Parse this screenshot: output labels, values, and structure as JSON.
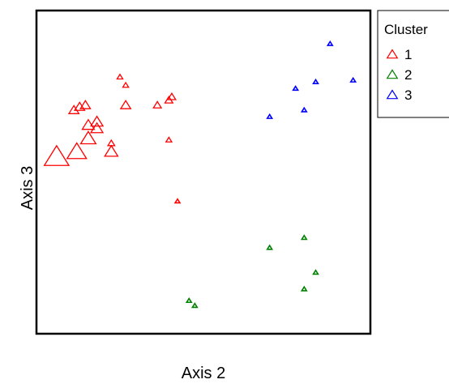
{
  "chart_data": {
    "type": "scatter",
    "xlabel": "Axis 2",
    "ylabel": "Axis 3",
    "axes_visible": false,
    "marker": "open-triangle",
    "marker_size_varies": true,
    "legend": {
      "title": "Cluster",
      "placement": "outside-top-right",
      "entries": [
        {
          "label": "1",
          "color": "#ff0000"
        },
        {
          "label": "2",
          "color": "#008000"
        },
        {
          "label": "3",
          "color": "#0000ff"
        }
      ]
    },
    "series": [
      {
        "name": "1",
        "color": "#ff0000",
        "points": [
          {
            "x": 0.95,
            "y": 0.95,
            "size": 0.2
          },
          {
            "x": 1.05,
            "y": 0.9,
            "size": 0.2
          },
          {
            "x": 1.95,
            "y": 0.2,
            "size": 0.1
          },
          {
            "x": 1.6,
            "y": 0.78,
            "size": 0.4
          },
          {
            "x": 1.85,
            "y": 0.83,
            "size": 0.4
          },
          {
            "x": 1.8,
            "y": 0.81,
            "size": 0.4
          },
          {
            "x": 1.05,
            "y": 0.78,
            "size": 0.6
          },
          {
            "x": 0.15,
            "y": 0.75,
            "size": 0.6
          },
          {
            "x": 0.25,
            "y": 0.77,
            "size": 0.6
          },
          {
            "x": 0.35,
            "y": 0.78,
            "size": 0.6
          },
          {
            "x": 0.55,
            "y": 0.68,
            "size": 0.8
          },
          {
            "x": 0.4,
            "y": 0.66,
            "size": 0.8
          },
          {
            "x": 0.55,
            "y": 0.64,
            "size": 0.8
          },
          {
            "x": 0.4,
            "y": 0.58,
            "size": 1.1
          },
          {
            "x": 0.8,
            "y": 0.55,
            "size": 0.3
          },
          {
            "x": 0.8,
            "y": 0.5,
            "size": 0.9
          },
          {
            "x": 1.8,
            "y": 0.57,
            "size": 0.2
          },
          {
            "x": 0.2,
            "y": 0.5,
            "size": 1.5
          },
          {
            "x": -0.15,
            "y": 0.47,
            "size": 2.0
          }
        ]
      },
      {
        "name": "2",
        "color": "#008000",
        "points": [
          {
            "x": 3.55,
            "y": -0.08,
            "size": 0.1
          },
          {
            "x": 4.15,
            "y": -0.02,
            "size": 0.1
          },
          {
            "x": 4.35,
            "y": -0.23,
            "size": 0.1
          },
          {
            "x": 4.15,
            "y": -0.33,
            "size": 0.1
          },
          {
            "x": 2.15,
            "y": -0.4,
            "size": 0.1
          },
          {
            "x": 2.25,
            "y": -0.43,
            "size": 0.1
          }
        ]
      },
      {
        "name": "3",
        "color": "#0000ff",
        "points": [
          {
            "x": 4.6,
            "y": 1.15,
            "size": 0.1
          },
          {
            "x": 5.0,
            "y": 0.93,
            "size": 0.1
          },
          {
            "x": 4.35,
            "y": 0.92,
            "size": 0.1
          },
          {
            "x": 4.0,
            "y": 0.88,
            "size": 0.1
          },
          {
            "x": 4.15,
            "y": 0.75,
            "size": 0.1
          },
          {
            "x": 3.55,
            "y": 0.71,
            "size": 0.1
          }
        ]
      }
    ]
  }
}
